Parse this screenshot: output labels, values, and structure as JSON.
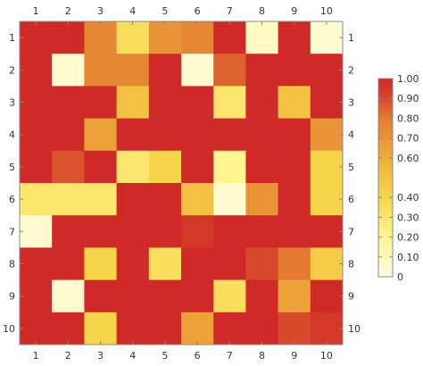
{
  "chart_data": {
    "type": "heatmap",
    "title": "",
    "xlabel": "",
    "ylabel": "",
    "x_ticks": [
      "1",
      "2",
      "3",
      "4",
      "5",
      "6",
      "7",
      "8",
      "9",
      "10"
    ],
    "y_ticks": [
      "1",
      "2",
      "3",
      "4",
      "5",
      "6",
      "7",
      "8",
      "9",
      "10"
    ],
    "values": [
      [
        1.0,
        1.0,
        0.75,
        0.35,
        0.7,
        0.75,
        1.0,
        0.08,
        1.0,
        0.05
      ],
      [
        1.0,
        0.05,
        0.75,
        0.75,
        1.0,
        0.05,
        0.85,
        1.0,
        1.0,
        1.0
      ],
      [
        1.0,
        1.0,
        1.0,
        0.5,
        1.0,
        1.0,
        0.3,
        1.0,
        0.5,
        1.0
      ],
      [
        1.0,
        1.0,
        0.65,
        1.0,
        1.0,
        1.0,
        1.0,
        1.0,
        1.0,
        0.7
      ],
      [
        1.0,
        0.88,
        1.0,
        0.3,
        0.4,
        1.0,
        0.2,
        1.0,
        1.0,
        0.4
      ],
      [
        0.3,
        0.3,
        0.3,
        1.0,
        1.0,
        0.5,
        0.05,
        0.7,
        1.0,
        0.4
      ],
      [
        0.05,
        1.0,
        1.0,
        1.0,
        1.0,
        0.95,
        1.0,
        1.0,
        1.0,
        1.0
      ],
      [
        1.0,
        1.0,
        0.4,
        1.0,
        0.35,
        1.0,
        1.0,
        0.9,
        0.8,
        0.45
      ],
      [
        1.0,
        0.05,
        1.0,
        1.0,
        1.0,
        1.0,
        0.35,
        1.0,
        0.65,
        1.0
      ],
      [
        1.0,
        1.0,
        0.4,
        1.0,
        1.0,
        0.65,
        1.0,
        1.0,
        0.9,
        0.95
      ]
    ],
    "colorbar": {
      "range": [
        0,
        1
      ],
      "tick_values": [
        0,
        0.1,
        0.2,
        0.3,
        0.4,
        0.6,
        0.7,
        0.8,
        0.9,
        1.0
      ],
      "tick_labels": [
        "0",
        "0.10",
        "0.20",
        "0.30",
        "0.40",
        "0.60",
        "0.70",
        "0.80",
        "0.90",
        "1.00"
      ],
      "color_stops": [
        {
          "v": 0.0,
          "color": "#fffde6"
        },
        {
          "v": 0.2,
          "color": "#fff590"
        },
        {
          "v": 0.4,
          "color": "#f7d54a"
        },
        {
          "v": 0.6,
          "color": "#eeae3c"
        },
        {
          "v": 0.8,
          "color": "#e47a30"
        },
        {
          "v": 0.92,
          "color": "#d6402a"
        },
        {
          "v": 1.0,
          "color": "#d02a28"
        }
      ]
    },
    "grid": false,
    "legend": "right"
  }
}
